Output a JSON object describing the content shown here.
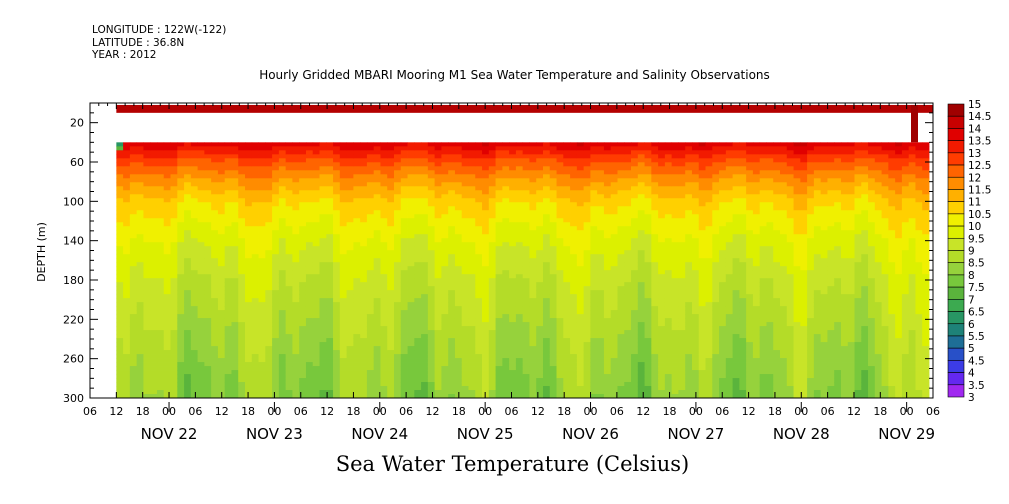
{
  "header": {
    "longitude": "LONGITUDE : 122W(-122)",
    "latitude": "LATITUDE : 36.8N",
    "year": "YEAR : 2012",
    "title": "Hourly Gridded MBARI Mooring M1 Sea Water Temperature and Salinity Observations"
  },
  "chart_data": {
    "type": "heatmap",
    "title": "Hourly Gridded MBARI Mooring M1 Sea Water Temperature and Salinity Observations",
    "xlabel": "",
    "ylabel": "DEPTH (m)",
    "colorbar_label": "Sea Water Temperature (Celsius)",
    "y_axis": {
      "range": [
        0,
        300
      ],
      "inverted": true,
      "tick_labels": [
        "20",
        "60",
        "100",
        "140",
        "180",
        "220",
        "260",
        "300"
      ],
      "tick_values": [
        20,
        60,
        100,
        140,
        180,
        220,
        260,
        300
      ]
    },
    "x_axis": {
      "start_hour": "NOV 21 06:00",
      "end_hour": "NOV 29 06:00",
      "hour_labels": [
        "06",
        "12",
        "18",
        "00",
        "06",
        "12",
        "18",
        "00",
        "06",
        "12",
        "18",
        "00",
        "06",
        "12",
        "18",
        "00",
        "06",
        "12",
        "18",
        "00",
        "06",
        "12",
        "18",
        "00",
        "06",
        "12",
        "18",
        "00",
        "06",
        "12",
        "18",
        "00",
        "06"
      ],
      "day_labels": [
        "NOV 22",
        "NOV 23",
        "NOV 24",
        "NOV 25",
        "NOV 26",
        "NOV 27",
        "NOV 28",
        "NOV 29"
      ]
    },
    "data_start": "NOV 21 12:00",
    "colorbar": {
      "levels": [
        "15",
        "14.5",
        "14",
        "13.5",
        "13",
        "12.5",
        "12",
        "11.5",
        "11",
        "10.5",
        "10",
        "9.5",
        "9",
        "8.5",
        "8",
        "7.5",
        "7",
        "6.5",
        "6",
        "5.5",
        "5",
        "4.5",
        "4",
        "3.5",
        "3"
      ],
      "colors": [
        "#a00000",
        "#c80000",
        "#e00000",
        "#f21a00",
        "#ff3c00",
        "#ff6400",
        "#ff8c00",
        "#ffb000",
        "#ffd000",
        "#f0f000",
        "#dcf000",
        "#c8e428",
        "#b4dc28",
        "#96d23c",
        "#78c83c",
        "#5ab43c",
        "#3caa50",
        "#289664",
        "#1e8278",
        "#1e6e96",
        "#2850c8",
        "#3c3ce6",
        "#6428f0",
        "#a028f0",
        "#dc28f0"
      ]
    },
    "profile": [
      {
        "depth": 10,
        "temp": 14.6
      },
      {
        "depth": 30,
        "temp": 14.6
      },
      {
        "depth": 45,
        "temp": 13.5
      },
      {
        "depth": 60,
        "temp": 12.5
      },
      {
        "depth": 80,
        "temp": 11.5
      },
      {
        "depth": 100,
        "temp": 10.7
      },
      {
        "depth": 140,
        "temp": 9.8
      },
      {
        "depth": 180,
        "temp": 9.2
      },
      {
        "depth": 220,
        "temp": 8.8
      },
      {
        "depth": 260,
        "temp": 8.4
      },
      {
        "depth": 300,
        "temp": 8.1
      }
    ]
  }
}
